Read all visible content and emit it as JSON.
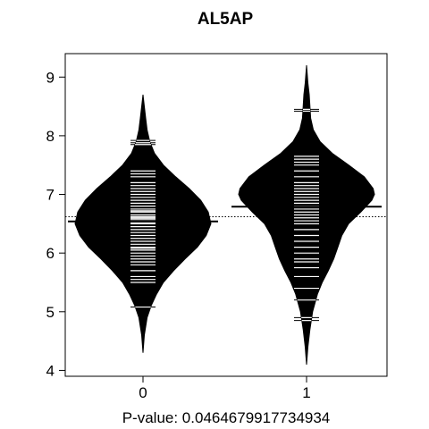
{
  "chart_data": {
    "type": "beanplot",
    "title": "AL5AP",
    "xlabel": "P-value: 0.0464679917734934",
    "categories": [
      "0",
      "1"
    ],
    "ylim": [
      3.9,
      9.4
    ],
    "yticks": [
      4,
      5,
      6,
      7,
      8,
      9
    ],
    "overall_mean": 6.62,
    "series": [
      {
        "category": "0",
        "mean": 6.54,
        "min": 4.3,
        "max": 8.7,
        "density": [
          [
            4.3,
            0.0
          ],
          [
            4.6,
            0.02
          ],
          [
            4.9,
            0.06
          ],
          [
            5.1,
            0.12
          ],
          [
            5.3,
            0.2
          ],
          [
            5.5,
            0.3
          ],
          [
            5.7,
            0.45
          ],
          [
            5.9,
            0.62
          ],
          [
            6.1,
            0.8
          ],
          [
            6.3,
            0.93
          ],
          [
            6.5,
            1.0
          ],
          [
            6.7,
            0.96
          ],
          [
            6.9,
            0.85
          ],
          [
            7.1,
            0.68
          ],
          [
            7.3,
            0.48
          ],
          [
            7.5,
            0.3
          ],
          [
            7.7,
            0.17
          ],
          [
            7.9,
            0.1
          ],
          [
            8.1,
            0.06
          ],
          [
            8.3,
            0.04
          ],
          [
            8.5,
            0.02
          ],
          [
            8.7,
            0.0
          ]
        ],
        "observations": [
          5.08,
          5.5,
          5.55,
          5.6,
          5.7,
          5.8,
          5.85,
          5.9,
          5.95,
          6.0,
          6.05,
          6.08,
          6.1,
          6.15,
          6.2,
          6.25,
          6.3,
          6.35,
          6.4,
          6.45,
          6.5,
          6.52,
          6.55,
          6.58,
          6.6,
          6.62,
          6.65,
          6.7,
          6.72,
          6.75,
          6.8,
          6.85,
          6.9,
          6.95,
          7.0,
          7.05,
          7.1,
          7.15,
          7.2,
          7.3,
          7.35,
          7.4,
          7.85,
          7.88,
          7.92
        ]
      },
      {
        "category": "1",
        "mean": 6.79,
        "min": 4.1,
        "max": 9.2,
        "density": [
          [
            4.1,
            0.0
          ],
          [
            4.4,
            0.02
          ],
          [
            4.7,
            0.05
          ],
          [
            5.0,
            0.09
          ],
          [
            5.3,
            0.16
          ],
          [
            5.5,
            0.23
          ],
          [
            5.7,
            0.32
          ],
          [
            5.9,
            0.4
          ],
          [
            6.1,
            0.46
          ],
          [
            6.3,
            0.52
          ],
          [
            6.5,
            0.62
          ],
          [
            6.7,
            0.8
          ],
          [
            6.9,
            0.96
          ],
          [
            7.0,
            1.0
          ],
          [
            7.1,
            0.98
          ],
          [
            7.3,
            0.85
          ],
          [
            7.5,
            0.62
          ],
          [
            7.7,
            0.38
          ],
          [
            7.9,
            0.2
          ],
          [
            8.1,
            0.1
          ],
          [
            8.3,
            0.06
          ],
          [
            8.5,
            0.05
          ],
          [
            8.7,
            0.04
          ],
          [
            8.9,
            0.02
          ],
          [
            9.2,
            0.0
          ]
        ],
        "observations": [
          4.85,
          4.9,
          5.2,
          5.4,
          5.6,
          5.75,
          5.85,
          5.9,
          6.0,
          6.1,
          6.2,
          6.3,
          6.4,
          6.5,
          6.55,
          6.6,
          6.65,
          6.7,
          6.75,
          6.8,
          6.85,
          6.9,
          6.95,
          7.0,
          7.05,
          7.1,
          7.15,
          7.2,
          7.3,
          7.4,
          7.5,
          7.55,
          7.6,
          7.65,
          8.42,
          8.45
        ]
      }
    ]
  }
}
